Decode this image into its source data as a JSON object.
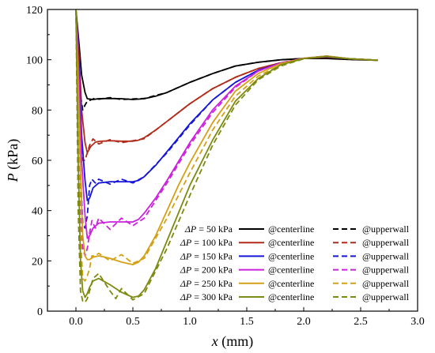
{
  "chart_data": {
    "type": "line",
    "xlabel_var": "x",
    "xlabel_unit": " (mm)",
    "ylabel_var": "P",
    "ylabel_unit": " (kPa)",
    "xlim": [
      -0.25,
      3.0
    ],
    "ylim": [
      0,
      120
    ],
    "xticks": [
      "0.0",
      "0.5",
      "1.0",
      "1.5",
      "2.0",
      "2.5",
      "3.0"
    ],
    "xtick_values": [
      0.0,
      0.5,
      1.0,
      1.5,
      2.0,
      2.5,
      3.0
    ],
    "yticks": [
      "0",
      "20",
      "40",
      "60",
      "80",
      "100",
      "120"
    ],
    "ytick_values": [
      0,
      20,
      40,
      60,
      80,
      100,
      120
    ],
    "grid": false,
    "legend_placement": "bottom-right",
    "legend_dp_symbol": "ΔP",
    "legend_centerline_label": "@centerline",
    "legend_upperwall_label": "@upperwall",
    "series": [
      {
        "dp_label": " = 50 kPa",
        "color": "#000000",
        "centerline": {
          "x": [
            0.0,
            0.03,
            0.05,
            0.08,
            0.1,
            0.15,
            0.2,
            0.3,
            0.4,
            0.5,
            0.6,
            0.7,
            0.8,
            0.9,
            1.0,
            1.2,
            1.4,
            1.6,
            1.8,
            2.0,
            2.2,
            2.4,
            2.65
          ],
          "y": [
            120,
            105,
            94,
            87,
            84.5,
            84.2,
            84.5,
            84.6,
            84.5,
            84.2,
            84.5,
            85.5,
            87,
            89,
            91,
            94.5,
            97.5,
            99,
            100,
            100.5,
            100.5,
            100.1,
            99.8
          ]
        },
        "upperwall": {
          "x": [
            0.0,
            0.02,
            0.04,
            0.06,
            0.08,
            0.1,
            0.13,
            0.17,
            0.2,
            0.3,
            0.4,
            0.5,
            0.6,
            0.8,
            1.0,
            1.2,
            1.4,
            1.6,
            1.8,
            2.0,
            2.2,
            2.4,
            2.65
          ],
          "y": [
            120,
            98,
            86,
            80,
            82,
            83.5,
            84,
            84.8,
            84.3,
            84.9,
            84.2,
            84.4,
            84.6,
            87,
            91,
            94.5,
            97.5,
            99,
            100,
            100.5,
            100.7,
            100.1,
            99.8
          ]
        }
      },
      {
        "dp_label": " = 100 kPa",
        "color": "#b22a1a",
        "centerline": {
          "x": [
            0.0,
            0.03,
            0.05,
            0.08,
            0.1,
            0.13,
            0.17,
            0.2,
            0.3,
            0.4,
            0.5,
            0.55,
            0.6,
            0.7,
            0.8,
            0.9,
            1.0,
            1.2,
            1.4,
            1.6,
            1.8,
            2.0,
            2.2,
            2.4,
            2.65
          ],
          "y": [
            120,
            100,
            80,
            67,
            63,
            65.5,
            67.2,
            67.5,
            67.8,
            67.6,
            67.6,
            68,
            69,
            72,
            75.5,
            79,
            82.5,
            88.5,
            93,
            96.5,
            98.8,
            100.5,
            101,
            100.4,
            99.8
          ]
        },
        "upperwall": {
          "x": [
            0.0,
            0.02,
            0.04,
            0.06,
            0.08,
            0.1,
            0.12,
            0.15,
            0.2,
            0.3,
            0.4,
            0.5,
            0.6,
            0.8,
            1.0,
            1.2,
            1.4,
            1.6,
            1.8,
            2.0,
            2.2,
            2.4,
            2.65
          ],
          "y": [
            120,
            92,
            72,
            60,
            60,
            63,
            66,
            68.5,
            66.5,
            68.2,
            67,
            67.8,
            68.6,
            75.5,
            82.5,
            88.5,
            93,
            96.5,
            98.8,
            100.5,
            101.2,
            100.4,
            99.8
          ]
        }
      },
      {
        "dp_label": " = 150 kPa",
        "color": "#1616d8",
        "centerline": {
          "x": [
            0.0,
            0.03,
            0.05,
            0.08,
            0.1,
            0.12,
            0.15,
            0.2,
            0.3,
            0.4,
            0.5,
            0.55,
            0.6,
            0.7,
            0.8,
            0.9,
            1.0,
            1.2,
            1.4,
            1.6,
            1.8,
            2.0,
            2.2,
            2.4,
            2.65
          ],
          "y": [
            120,
            95,
            70,
            52,
            44,
            45,
            49,
            51,
            51.5,
            51.5,
            51.5,
            52,
            53.5,
            58,
            63.5,
            69,
            74.5,
            84,
            91,
            95.8,
            98.7,
            100.5,
            101.2,
            100.4,
            99.8
          ]
        },
        "upperwall": {
          "x": [
            0.0,
            0.02,
            0.04,
            0.06,
            0.08,
            0.1,
            0.12,
            0.14,
            0.17,
            0.2,
            0.3,
            0.4,
            0.5,
            0.6,
            0.8,
            1.0,
            1.2,
            1.4,
            1.6,
            1.8,
            2.0,
            2.2,
            2.4,
            2.65
          ],
          "y": [
            120,
            85,
            55,
            35,
            33,
            38,
            50,
            52.5,
            51,
            52.5,
            50.5,
            52.5,
            51,
            53.5,
            63,
            74,
            84,
            91,
            95.8,
            98.7,
            100.5,
            101.4,
            100.4,
            99.8
          ]
        }
      },
      {
        "dp_label": " = 200 kPa",
        "color": "#cc22dd",
        "centerline": {
          "x": [
            0.0,
            0.03,
            0.05,
            0.08,
            0.1,
            0.12,
            0.15,
            0.2,
            0.3,
            0.4,
            0.5,
            0.55,
            0.6,
            0.7,
            0.8,
            0.9,
            1.0,
            1.2,
            1.4,
            1.6,
            1.8,
            2.0,
            2.2,
            2.4,
            2.65
          ],
          "y": [
            120,
            90,
            60,
            38,
            29,
            30,
            33,
            35,
            35.5,
            35.5,
            35.5,
            36.5,
            39,
            45,
            52,
            59.5,
            67,
            80,
            89.5,
            95.5,
            98.7,
            100.6,
            101.4,
            100.4,
            99.8
          ]
        },
        "upperwall": {
          "x": [
            0.0,
            0.02,
            0.04,
            0.06,
            0.08,
            0.1,
            0.12,
            0.14,
            0.17,
            0.2,
            0.3,
            0.4,
            0.5,
            0.6,
            0.8,
            1.0,
            1.2,
            1.4,
            1.6,
            1.8,
            2.0,
            2.2,
            2.4,
            2.65
          ],
          "y": [
            120,
            80,
            45,
            25,
            22,
            25,
            31,
            36,
            33,
            37,
            32.5,
            37,
            34,
            37,
            51,
            66,
            79,
            89,
            95.5,
            98.7,
            100.6,
            101.5,
            100.4,
            99.8
          ]
        }
      },
      {
        "dp_label": " = 250 kPa",
        "color": "#d4a017",
        "centerline": {
          "x": [
            0.0,
            0.02,
            0.04,
            0.06,
            0.08,
            0.1,
            0.12,
            0.15,
            0.2,
            0.3,
            0.4,
            0.5,
            0.55,
            0.6,
            0.7,
            0.8,
            0.9,
            1.0,
            1.2,
            1.4,
            1.6,
            1.8,
            2.0,
            2.2,
            2.4,
            2.65
          ],
          "y": [
            120,
            90,
            55,
            30,
            22,
            20.5,
            20.5,
            21.5,
            22,
            21,
            19.5,
            18.5,
            19.5,
            22,
            30,
            40,
            50,
            59,
            75,
            87.5,
            94.5,
            98.5,
            100.6,
            101.4,
            100.4,
            99.8
          ]
        },
        "upperwall": {
          "x": [
            0.0,
            0.02,
            0.04,
            0.06,
            0.08,
            0.1,
            0.12,
            0.14,
            0.17,
            0.2,
            0.3,
            0.4,
            0.5,
            0.6,
            0.8,
            1.0,
            1.2,
            1.4,
            1.6,
            1.8,
            2.0,
            2.2,
            2.4,
            2.65
          ],
          "y": [
            120,
            70,
            30,
            13,
            12,
            14,
            17,
            22,
            22,
            23,
            20,
            22.5,
            19,
            21,
            37,
            55,
            72,
            85.5,
            93.5,
            98,
            100.5,
            101.5,
            100.4,
            99.8
          ]
        }
      },
      {
        "dp_label": " = 300 kPa",
        "color": "#7d8a10",
        "centerline": {
          "x": [
            0.0,
            0.02,
            0.04,
            0.06,
            0.08,
            0.1,
            0.12,
            0.15,
            0.2,
            0.3,
            0.4,
            0.5,
            0.55,
            0.6,
            0.7,
            0.8,
            0.9,
            1.0,
            1.2,
            1.4,
            1.6,
            1.8,
            2.0,
            2.2,
            2.4,
            2.65
          ],
          "y": [
            120,
            60,
            20,
            8,
            5.5,
            7,
            9.5,
            12,
            13,
            10.5,
            7.5,
            5.5,
            6,
            8.5,
            17,
            28,
            39,
            50,
            68,
            83.5,
            92.5,
            98,
            100.5,
            101.3,
            100.4,
            99.8
          ]
        },
        "upperwall": {
          "x": [
            0.0,
            0.02,
            0.04,
            0.06,
            0.08,
            0.1,
            0.12,
            0.15,
            0.2,
            0.3,
            0.35,
            0.4,
            0.5,
            0.6,
            0.8,
            1.0,
            1.2,
            1.4,
            1.6,
            1.8,
            2.0,
            2.2,
            2.4,
            2.65
          ],
          "y": [
            120,
            40,
            8,
            4,
            3.5,
            5,
            8,
            13,
            15,
            8,
            5,
            9,
            4.5,
            7,
            25,
            46,
            66,
            82,
            92,
            97.5,
            100.4,
            101.3,
            100.4,
            99.8
          ]
        }
      }
    ]
  }
}
